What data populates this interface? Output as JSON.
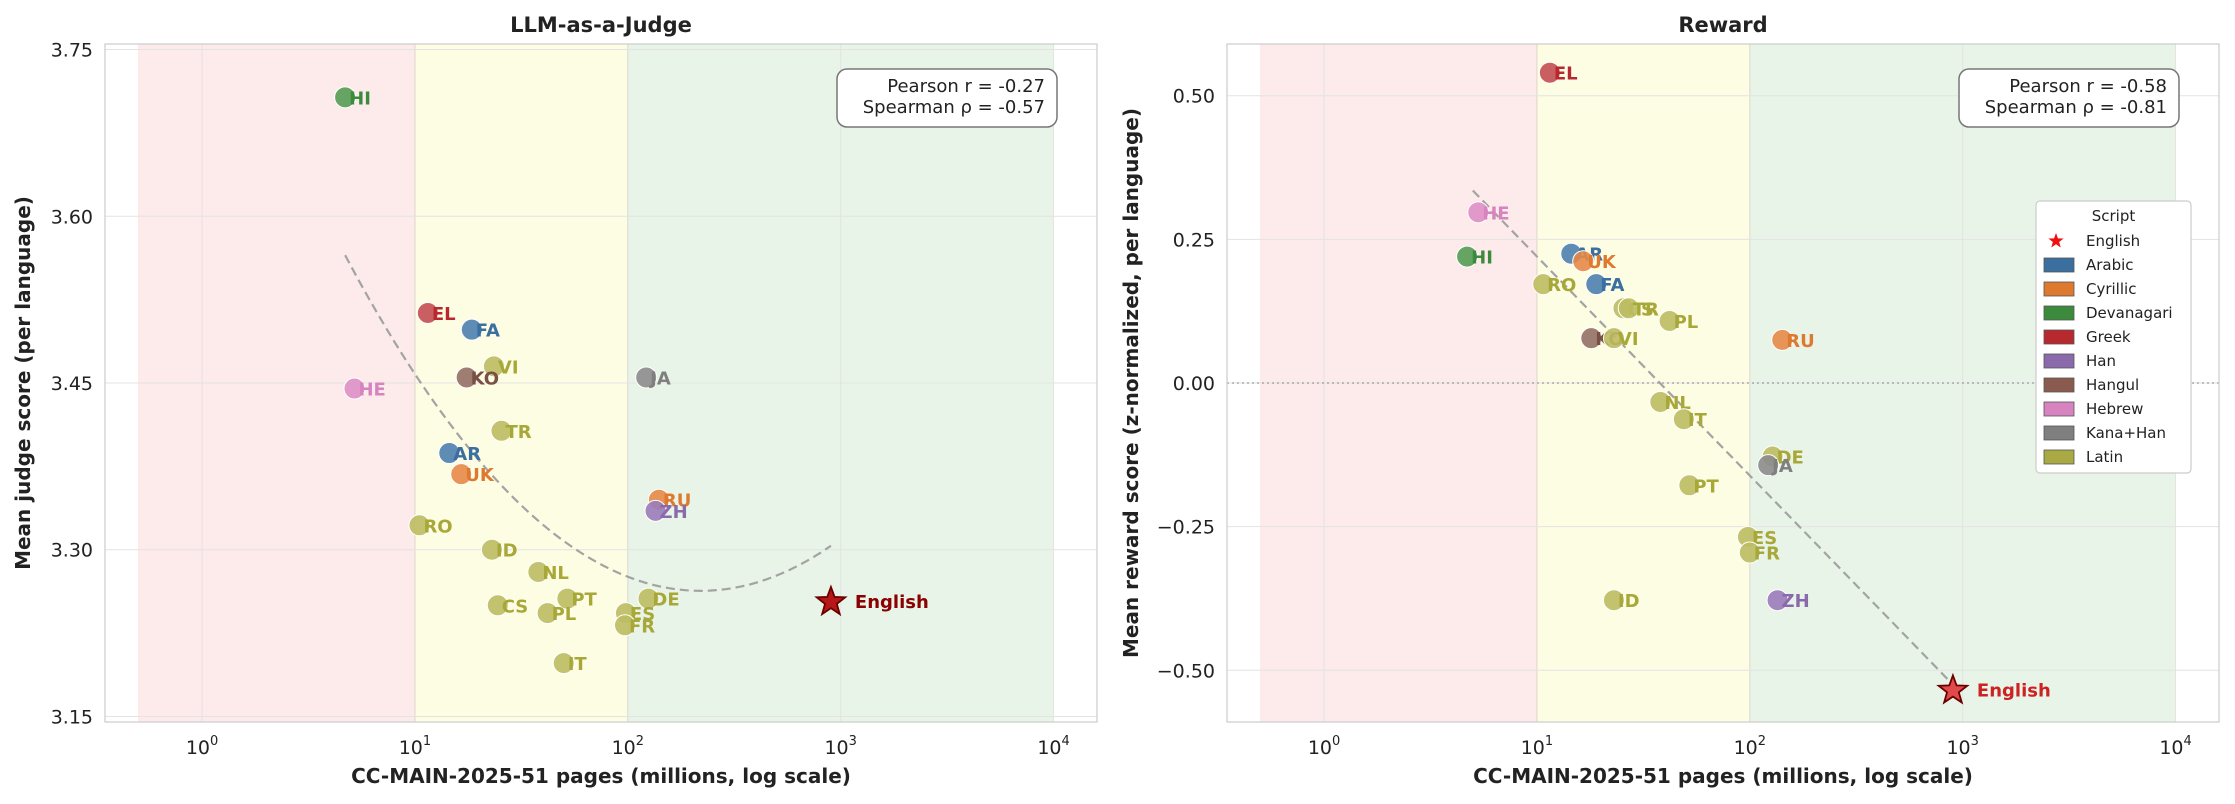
{
  "chart_data": [
    {
      "type": "scatter",
      "title": "LLM-as-a-Judge",
      "xlabel": "CC-MAIN-2025-51 pages (millions, log scale)",
      "ylabel": "Mean judge score (per language)",
      "xscale": "log",
      "xlim": [
        0.35,
        16000
      ],
      "ylim": [
        3.145,
        3.755
      ],
      "yticks": [
        "3.15",
        "3.30",
        "3.45",
        "3.60",
        "3.75"
      ],
      "ytick_values": [
        3.15,
        3.3,
        3.45,
        3.6,
        3.75
      ],
      "xticks": [
        {
          "base": "10",
          "exp": "0",
          "value": 1
        },
        {
          "base": "10",
          "exp": "1",
          "value": 10
        },
        {
          "base": "10",
          "exp": "2",
          "value": 100
        },
        {
          "base": "10",
          "exp": "3",
          "value": 1000
        },
        {
          "base": "10",
          "exp": "4",
          "value": 10000
        }
      ],
      "grid": true,
      "bands": [
        {
          "x0": 0.5,
          "x1": 10,
          "color": "#fdeaea"
        },
        {
          "x0": 10,
          "x1": 100,
          "color": "#fdfde4"
        },
        {
          "x0": 100,
          "x1": 10000,
          "color": "#e8f4e8"
        }
      ],
      "stats": [
        "Pearson r = -0.27",
        "Spearman ρ = -0.57"
      ],
      "fit": {
        "kind": "quadratic-log",
        "x0": 4.7,
        "y0": 3.565,
        "x1": 900,
        "y1": 3.305,
        "xmin": 220,
        "ymin": 3.263
      },
      "points": [
        {
          "label": "HI",
          "script": "Devanagari",
          "x": 4.7,
          "y": 3.707
        },
        {
          "label": "EL",
          "script": "Greek",
          "x": 11.5,
          "y": 3.513
        },
        {
          "label": "FA",
          "script": "Arabic",
          "x": 18.5,
          "y": 3.498
        },
        {
          "label": "VI",
          "script": "Latin",
          "x": 23.5,
          "y": 3.465
        },
        {
          "label": "KO",
          "script": "Hangul",
          "x": 17.5,
          "y": 3.455
        },
        {
          "label": "JA",
          "script": "Kana+Han",
          "x": 122,
          "y": 3.455
        },
        {
          "label": "HE",
          "script": "Hebrew",
          "x": 5.2,
          "y": 3.445
        },
        {
          "label": "TR",
          "script": "Latin",
          "x": 25.5,
          "y": 3.407
        },
        {
          "label": "AR",
          "script": "Arabic",
          "x": 14.5,
          "y": 3.387
        },
        {
          "label": "UK",
          "script": "Cyrillic",
          "x": 16.5,
          "y": 3.368
        },
        {
          "label": "RU",
          "script": "Cyrillic",
          "x": 140,
          "y": 3.345
        },
        {
          "label": "ZH",
          "script": "Han",
          "x": 135,
          "y": 3.335
        },
        {
          "label": "RO",
          "script": "Latin",
          "x": 10.5,
          "y": 3.322
        },
        {
          "label": "ID",
          "script": "Latin",
          "x": 23,
          "y": 3.3
        },
        {
          "label": "NL",
          "script": "Latin",
          "x": 38,
          "y": 3.28
        },
        {
          "label": "PT",
          "script": "Latin",
          "x": 52,
          "y": 3.256
        },
        {
          "label": "DE",
          "script": "Latin",
          "x": 125,
          "y": 3.256
        },
        {
          "label": "CS",
          "script": "Latin",
          "x": 24.5,
          "y": 3.25
        },
        {
          "label": "PL",
          "script": "Latin",
          "x": 42,
          "y": 3.243
        },
        {
          "label": "ES",
          "script": "Latin",
          "x": 98,
          "y": 3.243
        },
        {
          "label": "FR",
          "script": "Latin",
          "x": 97,
          "y": 3.232
        },
        {
          "label": "IT",
          "script": "Latin",
          "x": 50,
          "y": 3.198
        }
      ],
      "english": {
        "label": "English",
        "x": 900,
        "y": 3.253,
        "color": "#b51818",
        "label_color": "#8b0000"
      }
    },
    {
      "type": "scatter",
      "title": "Reward",
      "xlabel": "CC-MAIN-2025-51 pages (millions, log scale)",
      "ylabel": "Mean reward score (z-normalized, per language)",
      "xscale": "log",
      "xlim": [
        0.35,
        16000
      ],
      "ylim": [
        -0.59,
        0.59
      ],
      "yticks": [
        "−0.50",
        "−0.25",
        "0.00",
        "0.25",
        "0.50"
      ],
      "ytick_values": [
        -0.5,
        -0.25,
        0,
        0.25,
        0.5
      ],
      "xticks": [
        {
          "base": "10",
          "exp": "0",
          "value": 1
        },
        {
          "base": "10",
          "exp": "1",
          "value": 10
        },
        {
          "base": "10",
          "exp": "2",
          "value": 100
        },
        {
          "base": "10",
          "exp": "3",
          "value": 1000
        },
        {
          "base": "10",
          "exp": "4",
          "value": 10000
        }
      ],
      "grid": true,
      "zero_line": true,
      "bands": [
        {
          "x0": 0.5,
          "x1": 10,
          "color": "#fdeaea"
        },
        {
          "x0": 10,
          "x1": 100,
          "color": "#fdfde4"
        },
        {
          "x0": 100,
          "x1": 10000,
          "color": "#e8f4e8"
        }
      ],
      "stats": [
        "Pearson r = -0.58",
        "Spearman ρ = -0.81"
      ],
      "fit": {
        "kind": "linear-log",
        "x0": 5.0,
        "y0": 0.335,
        "x1": 900,
        "y1": -0.525
      },
      "points": [
        {
          "label": "EL",
          "script": "Greek",
          "x": 11.5,
          "y": 0.54
        },
        {
          "label": "HE",
          "script": "Hebrew",
          "x": 5.3,
          "y": 0.297
        },
        {
          "label": "AR",
          "script": "Arabic",
          "x": 14.5,
          "y": 0.225
        },
        {
          "label": "HI",
          "script": "Devanagari",
          "x": 4.7,
          "y": 0.22
        },
        {
          "label": "UK",
          "script": "Cyrillic",
          "x": 16.5,
          "y": 0.212
        },
        {
          "label": "RO",
          "script": "Latin",
          "x": 10.7,
          "y": 0.172
        },
        {
          "label": "FA",
          "script": "Arabic",
          "x": 19,
          "y": 0.172
        },
        {
          "label": "CS",
          "script": "Latin",
          "x": 25.5,
          "y": 0.13
        },
        {
          "label": "TR",
          "script": "Latin",
          "x": 27,
          "y": 0.13
        },
        {
          "label": "PL",
          "script": "Latin",
          "x": 42,
          "y": 0.108
        },
        {
          "label": "KO",
          "script": "Hangul",
          "x": 18,
          "y": 0.078
        },
        {
          "label": "VI",
          "script": "Latin",
          "x": 23,
          "y": 0.078
        },
        {
          "label": "RU",
          "script": "Cyrillic",
          "x": 142,
          "y": 0.075
        },
        {
          "label": "NL",
          "script": "Latin",
          "x": 38,
          "y": -0.033
        },
        {
          "label": "IT",
          "script": "Latin",
          "x": 49,
          "y": -0.063
        },
        {
          "label": "DE",
          "script": "Latin",
          "x": 128,
          "y": -0.128
        },
        {
          "label": "JA",
          "script": "Kana+Han",
          "x": 122,
          "y": -0.143
        },
        {
          "label": "PT",
          "script": "Latin",
          "x": 52,
          "y": -0.178
        },
        {
          "label": "ES",
          "script": "Latin",
          "x": 98,
          "y": -0.268
        },
        {
          "label": "FR",
          "script": "Latin",
          "x": 100,
          "y": -0.295
        },
        {
          "label": "ID",
          "script": "Latin",
          "x": 23,
          "y": -0.378
        },
        {
          "label": "ZH",
          "script": "Han",
          "x": 135,
          "y": -0.378
        }
      ],
      "english": {
        "label": "English",
        "x": 900,
        "y": -0.535,
        "color": "#e04a4a",
        "label_color": "#cc2222"
      },
      "legend": {
        "title": "Script",
        "placement": "right",
        "entries": [
          {
            "name": "English",
            "marker": "star",
            "color": "#ee1111"
          },
          {
            "name": "Arabic",
            "color": "#3a6fa0"
          },
          {
            "name": "Cyrillic",
            "color": "#de7a30"
          },
          {
            "name": "Devanagari",
            "color": "#3c8b3c"
          },
          {
            "name": "Greek",
            "color": "#b8282f"
          },
          {
            "name": "Han",
            "color": "#8b6aac"
          },
          {
            "name": "Hangul",
            "color": "#8b5a4e"
          },
          {
            "name": "Hebrew",
            "color": "#d783c0"
          },
          {
            "name": "Kana+Han",
            "color": "#7f7f7f"
          },
          {
            "name": "Latin",
            "color": "#aaaa45"
          }
        ]
      }
    }
  ],
  "script_colors": {
    "Arabic": {
      "marker": "#4d80ae",
      "label": "#3a6fa0"
    },
    "Cyrillic": {
      "marker": "#e58a47",
      "label": "#de7a30"
    },
    "Devanagari": {
      "marker": "#549c54",
      "label": "#3c8b3c"
    },
    "Greek": {
      "marker": "#c44e52",
      "label": "#b8282f"
    },
    "Han": {
      "marker": "#9a7cba",
      "label": "#8b6aac"
    },
    "Hangul": {
      "marker": "#937065",
      "label": "#7a5045"
    },
    "Hebrew": {
      "marker": "#de90c6",
      "label": "#d783c0"
    },
    "Kana+Han": {
      "marker": "#8c8c8c",
      "label": "#7f7f7f"
    },
    "Latin": {
      "marker": "#bdbd62",
      "label": "#a8a838"
    }
  }
}
